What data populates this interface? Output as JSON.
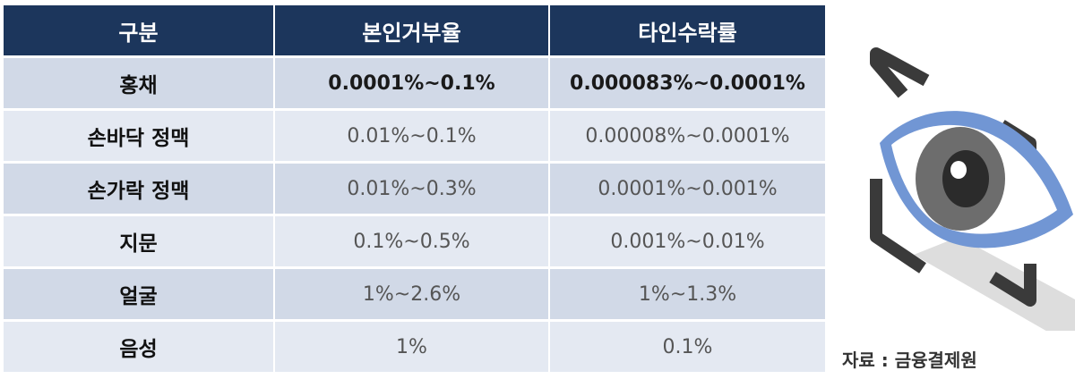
{
  "table": {
    "headers": [
      "구분",
      "본인거부율",
      "타인수락률"
    ],
    "rows": [
      {
        "category": "홍채",
        "frr": "0.0001%~0.1%",
        "far": "0.000083%~0.0001%",
        "emphasized": true
      },
      {
        "category": "손바닥 정맥",
        "frr": "0.01%~0.1%",
        "far": "0.00008%~0.0001%"
      },
      {
        "category": "손가락 정맥",
        "frr": "0.01%~0.3%",
        "far": "0.0001%~0.001%"
      },
      {
        "category": "지문",
        "frr": "0.1%~0.5%",
        "far": "0.001%~0.01%"
      },
      {
        "category": "얼굴",
        "frr": "1%~2.6%",
        "far": "1%~1.3%"
      },
      {
        "category": "음성",
        "frr": "1%",
        "far": "0.1%"
      }
    ]
  },
  "illustration": {
    "name": "eye-scan-icon"
  },
  "source": "자료 : 금융결제원",
  "colors": {
    "header_bg": "#1c365c",
    "row_dark": "#d1d9e7",
    "row_light": "#e4e9f2",
    "eye_blue": "#7196d4",
    "eye_gray": "#6d6d6d"
  }
}
